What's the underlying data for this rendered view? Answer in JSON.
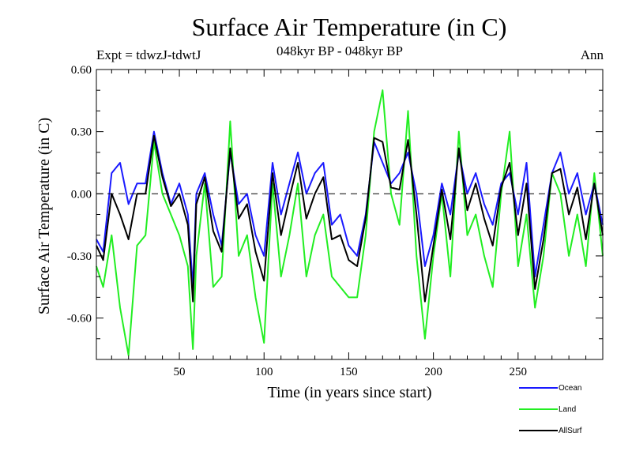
{
  "chart_data": {
    "type": "line",
    "title": "Surface Air Temperature (in C)",
    "subtitle_left": "Expt = tdwzJ-tdwtJ",
    "subtitle_center": "048kyr BP - 048kyr BP",
    "subtitle_right": "Ann",
    "xlabel": "Time (in years since start)",
    "ylabel": "Surface Air Temperature (in C)",
    "xlim": [
      1,
      300
    ],
    "ylim": [
      -0.8,
      0.6
    ],
    "xticks": [
      50,
      100,
      150,
      200,
      250
    ],
    "xtick_labels": [
      "50",
      "100",
      "150",
      "200",
      "250"
    ],
    "yticks": [
      0.6,
      0.3,
      0.0,
      -0.3,
      -0.6
    ],
    "ytick_labels": [
      "0.60",
      "0.30",
      "0.00",
      "-0.30",
      "-0.60"
    ],
    "zero_line": "dashed",
    "grid": false,
    "legend_position": "bottom-right",
    "series": [
      {
        "name": "Ocean",
        "color": "#1a1aff",
        "x": [
          1,
          5,
          10,
          15,
          20,
          25,
          30,
          35,
          40,
          45,
          50,
          55,
          58,
          60,
          65,
          70,
          75,
          80,
          85,
          90,
          95,
          100,
          105,
          110,
          115,
          120,
          125,
          130,
          135,
          140,
          145,
          150,
          155,
          160,
          165,
          170,
          175,
          180,
          185,
          190,
          195,
          200,
          205,
          210,
          215,
          220,
          225,
          230,
          235,
          240,
          245,
          250,
          255,
          260,
          265,
          270,
          275,
          280,
          285,
          290,
          295,
          300
        ],
        "values": [
          -0.22,
          -0.28,
          0.1,
          0.15,
          -0.05,
          0.05,
          0.05,
          0.3,
          0.1,
          -0.05,
          0.05,
          -0.1,
          -0.45,
          0.0,
          0.1,
          -0.1,
          -0.25,
          0.2,
          -0.05,
          0.0,
          -0.2,
          -0.3,
          0.15,
          -0.1,
          0.05,
          0.2,
          0.0,
          0.1,
          0.15,
          -0.15,
          -0.1,
          -0.25,
          -0.3,
          -0.1,
          0.25,
          0.15,
          0.05,
          0.1,
          0.2,
          0.0,
          -0.35,
          -0.2,
          0.05,
          -0.1,
          0.2,
          0.0,
          0.1,
          -0.05,
          -0.15,
          0.05,
          0.1,
          -0.1,
          0.15,
          -0.4,
          -0.15,
          0.1,
          0.2,
          0.0,
          0.1,
          -0.1,
          0.05,
          -0.15
        ]
      },
      {
        "name": "Land",
        "color": "#22ee22",
        "x": [
          1,
          5,
          10,
          15,
          20,
          25,
          30,
          35,
          40,
          45,
          50,
          55,
          58,
          60,
          65,
          70,
          75,
          80,
          85,
          90,
          95,
          100,
          105,
          110,
          115,
          120,
          125,
          130,
          135,
          140,
          145,
          150,
          155,
          160,
          165,
          170,
          175,
          180,
          185,
          190,
          195,
          200,
          205,
          210,
          215,
          220,
          225,
          230,
          235,
          240,
          245,
          250,
          255,
          260,
          265,
          270,
          275,
          280,
          285,
          290,
          295,
          300
        ],
        "values": [
          -0.35,
          -0.45,
          -0.2,
          -0.55,
          -0.78,
          -0.25,
          -0.2,
          0.25,
          0.0,
          -0.1,
          -0.2,
          -0.35,
          -0.75,
          -0.3,
          0.05,
          -0.45,
          -0.4,
          0.35,
          -0.3,
          -0.2,
          -0.5,
          -0.72,
          0.05,
          -0.4,
          -0.2,
          0.05,
          -0.4,
          -0.2,
          -0.1,
          -0.4,
          -0.45,
          -0.5,
          -0.5,
          -0.2,
          0.3,
          0.5,
          0.0,
          -0.15,
          0.4,
          -0.3,
          -0.7,
          -0.3,
          0.0,
          -0.4,
          0.3,
          -0.2,
          -0.1,
          -0.3,
          -0.45,
          0.0,
          0.3,
          -0.35,
          -0.1,
          -0.55,
          -0.3,
          0.1,
          0.0,
          -0.3,
          -0.1,
          -0.35,
          0.1,
          -0.3
        ]
      },
      {
        "name": "AllSurf",
        "color": "#000000",
        "x": [
          1,
          5,
          10,
          15,
          20,
          25,
          30,
          35,
          40,
          45,
          50,
          55,
          58,
          60,
          65,
          70,
          75,
          80,
          85,
          90,
          95,
          100,
          105,
          110,
          115,
          120,
          125,
          130,
          135,
          140,
          145,
          150,
          155,
          160,
          165,
          170,
          175,
          180,
          185,
          190,
          195,
          200,
          205,
          210,
          215,
          220,
          225,
          230,
          235,
          240,
          245,
          250,
          255,
          260,
          265,
          270,
          275,
          280,
          285,
          290,
          295,
          300
        ],
        "values": [
          -0.25,
          -0.32,
          0.0,
          -0.1,
          -0.22,
          0.0,
          0.0,
          0.28,
          0.08,
          -0.06,
          0.0,
          -0.15,
          -0.52,
          -0.05,
          0.08,
          -0.18,
          -0.28,
          0.22,
          -0.12,
          -0.05,
          -0.28,
          -0.42,
          0.1,
          -0.2,
          -0.02,
          0.15,
          -0.12,
          0.0,
          0.08,
          -0.22,
          -0.2,
          -0.32,
          -0.35,
          -0.12,
          0.27,
          0.25,
          0.03,
          0.02,
          0.26,
          -0.1,
          -0.52,
          -0.25,
          0.02,
          -0.22,
          0.22,
          -0.08,
          0.05,
          -0.12,
          -0.25,
          0.03,
          0.15,
          -0.2,
          0.05,
          -0.46,
          -0.22,
          0.1,
          0.12,
          -0.1,
          0.03,
          -0.22,
          0.05,
          -0.2
        ]
      }
    ]
  }
}
